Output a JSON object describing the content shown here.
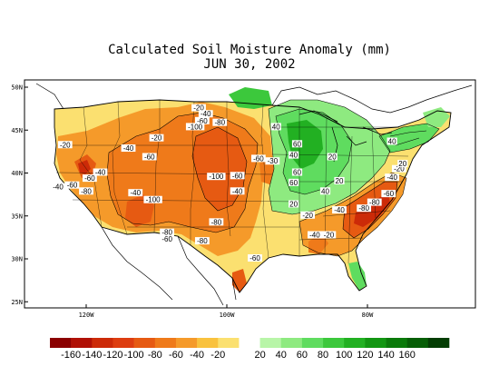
{
  "title": "Calculated Soil Moisture Anomaly (mm)",
  "subtitle": "JUN 30, 2002",
  "lat_ticks": [
    {
      "deg": 50,
      "label": "50N"
    },
    {
      "deg": 45,
      "label": "45N"
    },
    {
      "deg": 40,
      "label": "40N"
    },
    {
      "deg": 35,
      "label": "35N"
    },
    {
      "deg": 30,
      "label": "30N"
    },
    {
      "deg": 25,
      "label": "25N"
    }
  ],
  "lon_ticks": [
    {
      "deg": -120,
      "label": "120W"
    },
    {
      "deg": -100,
      "label": "100W"
    },
    {
      "deg": -80,
      "label": "80W"
    }
  ],
  "legend": {
    "bins": [
      {
        "color": "#8b0000"
      },
      {
        "color": "#b01005"
      },
      {
        "color": "#cc2a08"
      },
      {
        "color": "#dd3d10"
      },
      {
        "color": "#e65a12"
      },
      {
        "color": "#ef7a1a"
      },
      {
        "color": "#f59a2a"
      },
      {
        "color": "#f9c23e"
      },
      {
        "color": "#fbe070"
      },
      {
        "color": "#ffffff"
      },
      {
        "color": "#b8f5a8"
      },
      {
        "color": "#8eea80"
      },
      {
        "color": "#5fdc5f"
      },
      {
        "color": "#3cc83c"
      },
      {
        "color": "#22b022"
      },
      {
        "color": "#129612"
      },
      {
        "color": "#0a7a0a"
      },
      {
        "color": "#065e06"
      },
      {
        "color": "#033d03"
      }
    ],
    "labels": [
      "-160",
      "-140",
      "-120",
      "-100",
      "-80",
      "-60",
      "-40",
      "-20",
      "20",
      "40",
      "60",
      "80",
      "100",
      "120",
      "140",
      "160"
    ]
  },
  "contour_labels": [
    {
      "text": "-20",
      "lat": 47.5,
      "lon": -104
    },
    {
      "text": "-40",
      "lat": 46.8,
      "lon": -103
    },
    {
      "text": "-60",
      "lat": 46.0,
      "lon": -103.5
    },
    {
      "text": "-80",
      "lat": 45.8,
      "lon": -101
    },
    {
      "text": "-100",
      "lat": 45.3,
      "lon": -104.5
    },
    {
      "text": "-20",
      "lat": 44.0,
      "lon": -110
    },
    {
      "text": "-20",
      "lat": 43.2,
      "lon": -123
    },
    {
      "text": "-40",
      "lat": 42.8,
      "lon": -114
    },
    {
      "text": "-60",
      "lat": 41.8,
      "lon": -111
    },
    {
      "text": "-40",
      "lat": 40.0,
      "lon": -118
    },
    {
      "text": "-60",
      "lat": 39.3,
      "lon": -119.5
    },
    {
      "text": "-40",
      "lat": 38.3,
      "lon": -124
    },
    {
      "text": "-60",
      "lat": 38.5,
      "lon": -122
    },
    {
      "text": "-80",
      "lat": 37.8,
      "lon": -120
    },
    {
      "text": "-40",
      "lat": 37.6,
      "lon": -113
    },
    {
      "text": "-100",
      "lat": 36.8,
      "lon": -110.5
    },
    {
      "text": "-100",
      "lat": 39.5,
      "lon": -101.5
    },
    {
      "text": "-60",
      "lat": 39.6,
      "lon": -98.5
    },
    {
      "text": "-40",
      "lat": 37.8,
      "lon": -98.5
    },
    {
      "text": "-60",
      "lat": 41.6,
      "lon": -95.5
    },
    {
      "text": "-30",
      "lat": 41.3,
      "lon": -93.5
    },
    {
      "text": "-80",
      "lat": 34.2,
      "lon": -101.5
    },
    {
      "text": "-80",
      "lat": 33.0,
      "lon": -108.5
    },
    {
      "text": "-60",
      "lat": 32.2,
      "lon": -108.5
    },
    {
      "text": "-80",
      "lat": 32.0,
      "lon": -103.5
    },
    {
      "text": "-60",
      "lat": 30.0,
      "lon": -96
    },
    {
      "text": "-40",
      "lat": 32.7,
      "lon": -87.5
    },
    {
      "text": "-20",
      "lat": 32.7,
      "lon": -85.5
    },
    {
      "text": "-20",
      "lat": 35.0,
      "lon": -88.5
    },
    {
      "text": "-40",
      "lat": 35.6,
      "lon": -84
    },
    {
      "text": "-80",
      "lat": 35.8,
      "lon": -80.5
    },
    {
      "text": "-80",
      "lat": 36.5,
      "lon": -79
    },
    {
      "text": "-60",
      "lat": 37.5,
      "lon": -77
    },
    {
      "text": "-40",
      "lat": 39.4,
      "lon": -76.5
    },
    {
      "text": "-20",
      "lat": 40.4,
      "lon": -75.5
    },
    {
      "text": "20",
      "lat": 41.0,
      "lon": -75
    },
    {
      "text": "40",
      "lat": 45.3,
      "lon": -93
    },
    {
      "text": "60",
      "lat": 43.3,
      "lon": -90
    },
    {
      "text": "40",
      "lat": 42.0,
      "lon": -90.5
    },
    {
      "text": "60",
      "lat": 40.0,
      "lon": -90
    },
    {
      "text": "60",
      "lat": 38.8,
      "lon": -90.5
    },
    {
      "text": "40",
      "lat": 37.8,
      "lon": -86
    },
    {
      "text": "20",
      "lat": 39.0,
      "lon": -84
    },
    {
      "text": "20",
      "lat": 41.8,
      "lon": -85
    },
    {
      "text": "20",
      "lat": 36.3,
      "lon": -90.5
    },
    {
      "text": "40",
      "lat": 43.6,
      "lon": -76.5
    }
  ]
}
